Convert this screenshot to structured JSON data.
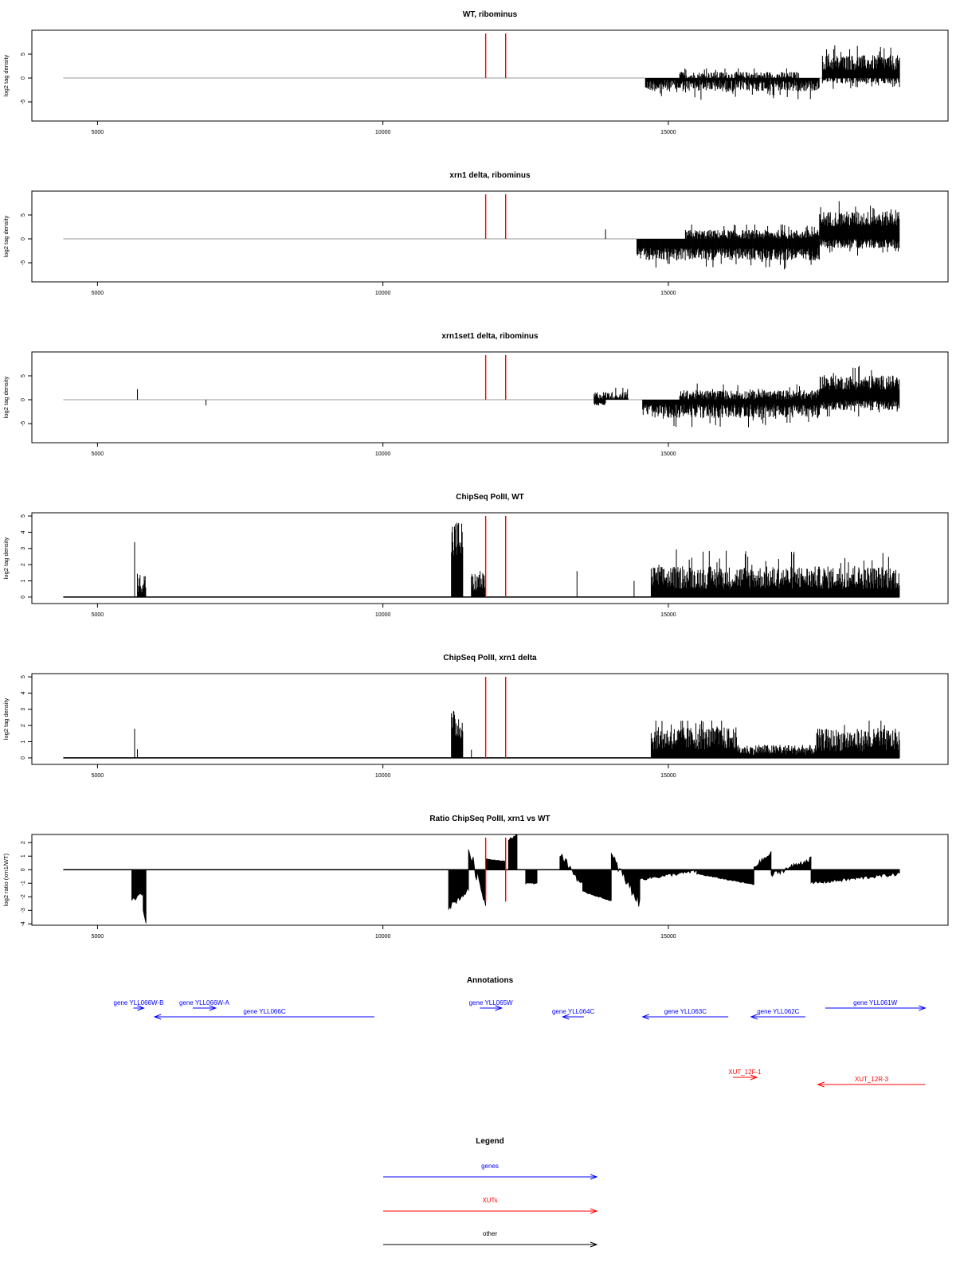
{
  "colors": {
    "genes": "#0000ff",
    "xuts": "#ff0000",
    "other": "#000000",
    "marker": "#ff0000",
    "zero_line": "#999999"
  },
  "chart_data": [
    {
      "type": "bar",
      "title": "WT, ribominus",
      "ylabel": "log2 tag density",
      "xlim": [
        3850,
        19900
      ],
      "ylim": [
        -9,
        10
      ],
      "xticks": [
        5000,
        10000,
        15000
      ],
      "yticks": [
        -5,
        0,
        5
      ],
      "ytick_labels": [
        "-5",
        "0",
        "5"
      ],
      "style": "stranded",
      "markers": [
        11800,
        12150
      ],
      "features": [
        {
          "start": 14600,
          "end": 17650,
          "sign": -1,
          "level": 1.6,
          "var": 1.2,
          "max": 5
        },
        {
          "start": 15200,
          "end": 17300,
          "sign": 1,
          "level": 0.4,
          "var": 0.9,
          "max": 2
        },
        {
          "start": 17700,
          "end": 19050,
          "sign": 1,
          "level": 3.2,
          "var": 1.6,
          "max": 8
        },
        {
          "start": 17700,
          "end": 19050,
          "sign": -1,
          "level": 0.3,
          "var": 0.8,
          "max": 3
        }
      ]
    },
    {
      "type": "bar",
      "title": "xrn1 delta, ribominus",
      "ylabel": "log2 tag density",
      "xlim": [
        3850,
        19900
      ],
      "ylim": [
        -9,
        10
      ],
      "xticks": [
        5000,
        10000,
        15000
      ],
      "yticks": [
        -5,
        0,
        5
      ],
      "ytick_labels": [
        "-5",
        "0",
        "5"
      ],
      "style": "stranded",
      "markers": [
        11800,
        12150
      ],
      "features": [
        {
          "start": 13900,
          "end": 13950,
          "sign": 1,
          "level": 1.8,
          "var": 0.2,
          "max": 2
        },
        {
          "start": 14450,
          "end": 17650,
          "sign": -1,
          "level": 3.2,
          "var": 1.3,
          "max": 6.5
        },
        {
          "start": 15300,
          "end": 17650,
          "sign": 1,
          "level": 0.9,
          "var": 1.0,
          "max": 3
        },
        {
          "start": 17650,
          "end": 19050,
          "sign": 1,
          "level": 4.2,
          "var": 1.6,
          "max": 9
        },
        {
          "start": 17650,
          "end": 19050,
          "sign": -1,
          "level": 1.0,
          "var": 1.0,
          "max": 4.5
        }
      ]
    },
    {
      "type": "bar",
      "title": "xrn1set1 delta, ribominus",
      "ylabel": "log2 tag density",
      "xlim": [
        3850,
        19900
      ],
      "ylim": [
        -9,
        10
      ],
      "xticks": [
        5000,
        10000,
        15000
      ],
      "yticks": [
        -5,
        0,
        5
      ],
      "ytick_labels": [
        "-5",
        "0",
        "5"
      ],
      "style": "stranded",
      "markers": [
        11800,
        12150
      ],
      "features": [
        {
          "start": 5700,
          "end": 5730,
          "sign": 1,
          "level": 2.2,
          "var": 0,
          "max": 2.2
        },
        {
          "start": 6900,
          "end": 6930,
          "sign": -1,
          "level": 1.2,
          "var": 0,
          "max": 1.2
        },
        {
          "start": 13700,
          "end": 14300,
          "sign": 1,
          "level": 0.9,
          "var": 0.8,
          "max": 2.5
        },
        {
          "start": 13700,
          "end": 13900,
          "sign": -1,
          "level": 0.9,
          "var": 0.3,
          "max": 1.2
        },
        {
          "start": 14550,
          "end": 17650,
          "sign": -1,
          "level": 2.4,
          "var": 1.4,
          "max": 8
        },
        {
          "start": 15200,
          "end": 17650,
          "sign": 1,
          "level": 1.0,
          "var": 1.0,
          "max": 4
        },
        {
          "start": 17650,
          "end": 19050,
          "sign": 1,
          "level": 3.6,
          "var": 1.5,
          "max": 7.5
        },
        {
          "start": 17650,
          "end": 19050,
          "sign": -1,
          "level": 1.2,
          "var": 1.0,
          "max": 3.5
        }
      ]
    },
    {
      "type": "bar",
      "title": "ChipSeq PolII, WT",
      "ylabel": "log2 tag density",
      "xlim": [
        3850,
        19900
      ],
      "ylim": [
        -0.4,
        5.2
      ],
      "xticks": [
        5000,
        10000,
        15000
      ],
      "yticks": [
        0,
        1,
        2,
        3,
        4,
        5
      ],
      "ytick_labels": [
        "0",
        "1",
        "2",
        "3",
        "4",
        "5"
      ],
      "style": "positive",
      "markers": [
        11800,
        12150
      ],
      "features": [
        {
          "start": 5650,
          "end": 5700,
          "sign": 1,
          "level": 3.3,
          "var": 0.8,
          "max": 4.1
        },
        {
          "start": 5700,
          "end": 5850,
          "sign": 1,
          "level": 0.9,
          "var": 0.6,
          "max": 2.3
        },
        {
          "start": 11200,
          "end": 11400,
          "sign": 1,
          "level": 3.5,
          "var": 1.3,
          "max": 4.9
        },
        {
          "start": 11550,
          "end": 11800,
          "sign": 1,
          "level": 0.9,
          "var": 0.6,
          "max": 1.6
        },
        {
          "start": 13400,
          "end": 13420,
          "sign": 1,
          "level": 1.6,
          "var": 0,
          "max": 1.6
        },
        {
          "start": 14400,
          "end": 14420,
          "sign": 1,
          "level": 1.0,
          "var": 0,
          "max": 1.0
        },
        {
          "start": 14700,
          "end": 19050,
          "sign": 1,
          "level": 1.2,
          "var": 0.7,
          "max": 3.1
        }
      ]
    },
    {
      "type": "bar",
      "title": "ChipSeq PolII, xrn1 delta",
      "ylabel": "log2 tag density",
      "xlim": [
        3850,
        19900
      ],
      "ylim": [
        -0.4,
        5.2
      ],
      "xticks": [
        5000,
        10000,
        15000
      ],
      "yticks": [
        0,
        1,
        2,
        3,
        4,
        5
      ],
      "ytick_labels": [
        "0",
        "1",
        "2",
        "3",
        "4",
        "5"
      ],
      "style": "positive",
      "markers": [
        11800,
        12150
      ],
      "features": [
        {
          "start": 5650,
          "end": 5700,
          "sign": 1,
          "level": 1.4,
          "var": 0.4,
          "max": 1.8
        },
        {
          "start": 5700,
          "end": 5750,
          "sign": 1,
          "level": 0.7,
          "var": 0.3,
          "max": 1.1
        },
        {
          "start": 11200,
          "end": 11400,
          "sign": 1,
          "level": 2.0,
          "var": 0.9,
          "max": 2.9
        },
        {
          "start": 11550,
          "end": 11600,
          "sign": 1,
          "level": 0.5,
          "var": 0,
          "max": 0.5
        },
        {
          "start": 14700,
          "end": 16200,
          "sign": 1,
          "level": 1.2,
          "var": 0.7,
          "max": 2.3
        },
        {
          "start": 16200,
          "end": 17600,
          "sign": 1,
          "level": 0.5,
          "var": 0.3,
          "max": 0.8
        },
        {
          "start": 17600,
          "end": 19050,
          "sign": 1,
          "level": 1.1,
          "var": 0.7,
          "max": 2.3
        }
      ]
    },
    {
      "type": "area",
      "title": "Ratio ChipSeq PolII, xrn1 vs WT",
      "ylabel": "log2 ratio (xrn1/WT)",
      "xlim": [
        3850,
        19900
      ],
      "ylim": [
        -4.1,
        2.6
      ],
      "xticks": [
        5000,
        10000,
        15000
      ],
      "yticks": [
        -4,
        -3,
        -2,
        -1,
        0,
        1,
        2
      ],
      "ytick_labels": [
        "-4",
        "-3",
        "-2",
        "-1",
        "0",
        "1",
        "2"
      ],
      "style": "ratio",
      "markers": [
        11800,
        12150
      ],
      "segments": [
        {
          "start": 5600,
          "end": 5800,
          "from": -2.3,
          "to": -1.7
        },
        {
          "start": 5800,
          "end": 5850,
          "from": -3.0,
          "to": -3.9
        },
        {
          "start": 11150,
          "end": 11500,
          "from": -2.8,
          "to": -1.5
        },
        {
          "start": 11500,
          "end": 11800,
          "from": 1.6,
          "to": -2.5
        },
        {
          "start": 11800,
          "end": 12150,
          "from": 0.8,
          "to": 0.6
        },
        {
          "start": 12200,
          "end": 12350,
          "from": 2.2,
          "to": 2.6
        },
        {
          "start": 12500,
          "end": 12700,
          "from": -1.0,
          "to": -1.0
        },
        {
          "start": 13100,
          "end": 13500,
          "from": 1.2,
          "to": -1.2
        },
        {
          "start": 13500,
          "end": 14000,
          "from": -1.6,
          "to": -2.3
        },
        {
          "start": 14000,
          "end": 14500,
          "from": 1.0,
          "to": -2.5
        },
        {
          "start": 14500,
          "end": 15500,
          "from": -0.7,
          "to": -0.1
        },
        {
          "start": 15500,
          "end": 16500,
          "from": -0.3,
          "to": -1.1
        },
        {
          "start": 16500,
          "end": 16800,
          "from": 0.2,
          "to": 1.2
        },
        {
          "start": 16800,
          "end": 17500,
          "from": -0.4,
          "to": 0.8
        },
        {
          "start": 17500,
          "end": 19050,
          "from": -1.0,
          "to": -0.3
        }
      ]
    }
  ],
  "annotations_panel": {
    "title": "Annotations",
    "genes": [
      {
        "label": "gene YLL066W-B",
        "start": 5630,
        "end": 5810,
        "strand": "+",
        "row": 0
      },
      {
        "label": "gene YLL066W-A",
        "start": 6670,
        "end": 7070,
        "strand": "+",
        "row": 0
      },
      {
        "label": "gene YLL066C",
        "start": 6000,
        "end": 9850,
        "strand": "-",
        "row": 1
      },
      {
        "label": "gene YLL065W",
        "start": 11700,
        "end": 12080,
        "strand": "+",
        "row": 0
      },
      {
        "label": "gene YLL064C",
        "start": 13150,
        "end": 13520,
        "strand": "-",
        "row": 1
      },
      {
        "label": "gene YLL063C",
        "start": 14550,
        "end": 16050,
        "strand": "-",
        "row": 1
      },
      {
        "label": "gene YLL062C",
        "start": 16450,
        "end": 17400,
        "strand": "-",
        "row": 1
      },
      {
        "label": "gene YLL061W",
        "start": 17750,
        "end": 19500,
        "strand": "+",
        "row": 0
      }
    ],
    "xuts": [
      {
        "label": "XUT_12F-1",
        "start": 16130,
        "end": 16550,
        "strand": "+",
        "row": 0
      },
      {
        "label": "XUT_12R-3",
        "start": 17620,
        "end": 19500,
        "strand": "-",
        "row": 1
      }
    ]
  },
  "legend_panel": {
    "title": "Legend",
    "items": [
      {
        "label": "genes",
        "color": "#0000ff"
      },
      {
        "label": "XUTs",
        "color": "#ff0000"
      },
      {
        "label": "other",
        "color": "#000000"
      }
    ]
  }
}
